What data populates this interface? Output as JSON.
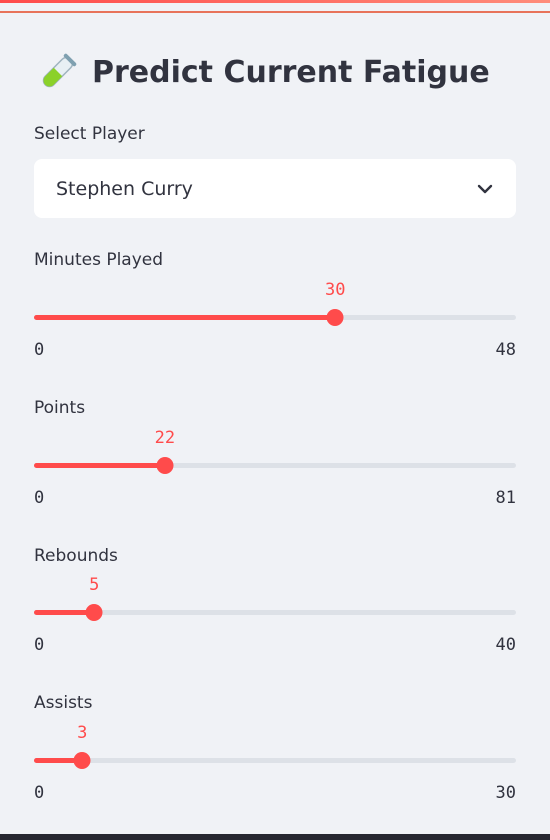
{
  "header": {
    "icon": "test-tube-icon",
    "title": "Predict Current Fatigue"
  },
  "player_select": {
    "label": "Select Player",
    "value": "Stephen Curry"
  },
  "sliders": [
    {
      "label": "Minutes Played",
      "value": 30,
      "min": 0,
      "max": 48
    },
    {
      "label": "Points",
      "value": 22,
      "min": 0,
      "max": 81
    },
    {
      "label": "Rebounds",
      "value": 5,
      "min": 0,
      "max": 40
    },
    {
      "label": "Assists",
      "value": 3,
      "min": 0,
      "max": 30
    }
  ],
  "colors": {
    "accent": "#ff4b4b",
    "track": "#dde1e7",
    "background": "#f0f2f6",
    "text": "#31333f"
  }
}
